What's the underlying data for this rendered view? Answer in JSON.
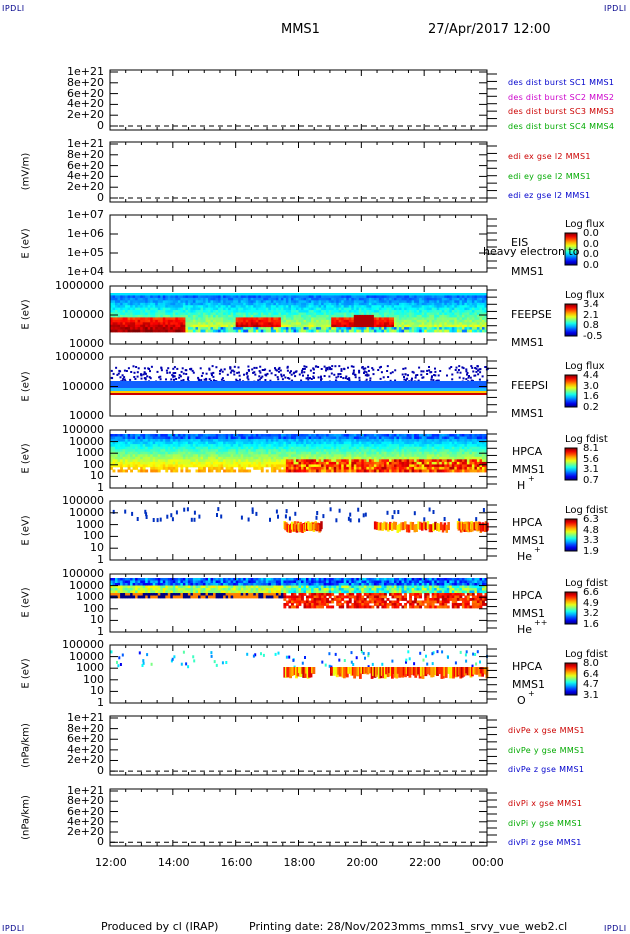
{
  "corner_labels": {
    "tl": "IPDLI",
    "tr": "IPDLI",
    "bl": "IPDLI",
    "br": "IPDLI"
  },
  "header": {
    "spacecraft": "MMS1",
    "datetime": "27/Apr/2017 12:00"
  },
  "footer": {
    "produced_by": "Produced by cl (IRAP)",
    "printing_date": "Printing date: 28/Nov/2023",
    "script": "mms_mms1_srvy_vue_web2.cl"
  },
  "colors": {
    "frame": "#000000",
    "mms1": "#0000cc",
    "mms2": "#cc00cc",
    "mms3": "#cc0000",
    "mms4": "#00aa00",
    "ex": "#cc0000",
    "ey": "#00aa00",
    "ez": "#0000cc"
  },
  "chart_data": [
    {
      "type": "line",
      "panel": "des dist burst",
      "ylabel": "",
      "yticks": [
        "1e+21",
        "8e+20",
        "6e+20",
        "4e+20",
        "2e+20",
        "0"
      ],
      "legend": [
        {
          "name": "des dist burst SC1 MMS1",
          "color": "#0000cc"
        },
        {
          "name": "des dist burst SC2 MMS2",
          "color": "#cc00cc"
        },
        {
          "name": "des dist burst SC3 MMS3",
          "color": "#cc0000"
        },
        {
          "name": "des dist burst SC4 MMS4",
          "color": "#00aa00"
        }
      ]
    },
    {
      "type": "line",
      "panel": "edi e gse",
      "ylabel": "(mV/m)",
      "yticks": [
        "1e+21",
        "8e+20",
        "6e+20",
        "4e+20",
        "2e+20",
        "0"
      ],
      "legend": [
        {
          "name": "edi ex gse l2 MMS1",
          "color": "#cc0000"
        },
        {
          "name": "edi ey gse l2 MMS1",
          "color": "#00aa00"
        },
        {
          "name": "edi ez gse l2 MMS1",
          "color": "#0000cc"
        }
      ]
    },
    {
      "type": "heatmap",
      "panel": "EIS",
      "ylabel": "E (eV)",
      "yticks": [
        "1e+07",
        "1e+06",
        "1e+05",
        "1e+04"
      ],
      "side_labels": [
        "EIS",
        "MMS1"
      ],
      "overlay": "heavy electron to",
      "cb_title": "Log flux",
      "cb_values": [
        "0.0",
        "0.0",
        "0.0",
        "0.0"
      ]
    },
    {
      "type": "heatmap",
      "panel": "FEEPSE",
      "ylabel": "E (eV)",
      "yticks": [
        "1000000",
        "100000",
        "10000"
      ],
      "side_labels": [
        "FEEPSE",
        "MMS1"
      ],
      "cb_title": "Log flux",
      "cb_values": [
        "3.4",
        "2.1",
        "0.8",
        "-0.5"
      ]
    },
    {
      "type": "heatmap",
      "panel": "FEEPSI",
      "ylabel": "E (eV)",
      "yticks": [
        "1000000",
        "100000",
        "10000"
      ],
      "side_labels": [
        "FEEPSI",
        "MMS1"
      ],
      "cb_title": "Log flux",
      "cb_values": [
        "4.4",
        "3.0",
        "1.6",
        "0.2"
      ]
    },
    {
      "type": "heatmap",
      "panel": "HPCA H+",
      "ylabel": "E (eV)",
      "yticks": [
        "100000",
        "10000",
        "1000",
        "100",
        "10",
        "1"
      ],
      "side_labels": [
        "HPCA",
        "MMS1",
        "H",
        "+"
      ],
      "cb_title": "Log fdist",
      "cb_values": [
        "8.1",
        "5.6",
        "3.1",
        "0.7"
      ]
    },
    {
      "type": "heatmap",
      "panel": "HPCA He+",
      "ylabel": "E (eV)",
      "yticks": [
        "100000",
        "10000",
        "1000",
        "100",
        "10",
        "1"
      ],
      "side_labels": [
        "HPCA",
        "MMS1",
        "He",
        "+"
      ],
      "cb_title": "Log fdist",
      "cb_values": [
        "6.3",
        "4.8",
        "3.3",
        "1.9"
      ]
    },
    {
      "type": "heatmap",
      "panel": "HPCA He++",
      "ylabel": "E (eV)",
      "yticks": [
        "100000",
        "10000",
        "1000",
        "100",
        "10",
        "1"
      ],
      "side_labels": [
        "HPCA",
        "MMS1",
        "He",
        "++"
      ],
      "cb_title": "Log fdist",
      "cb_values": [
        "6.6",
        "4.9",
        "3.2",
        "1.6"
      ]
    },
    {
      "type": "heatmap",
      "panel": "HPCA O+",
      "ylabel": "E (eV)",
      "yticks": [
        "100000",
        "10000",
        "1000",
        "100",
        "10",
        "1"
      ],
      "side_labels": [
        "HPCA",
        "MMS1",
        "O",
        "+"
      ],
      "cb_title": "Log fdist",
      "cb_values": [
        "8.0",
        "6.4",
        "4.7",
        "3.1"
      ]
    },
    {
      "type": "line",
      "panel": "divPe",
      "ylabel": "(nPa/km)",
      "yticks": [
        "1e+21",
        "8e+20",
        "6e+20",
        "4e+20",
        "2e+20",
        "0"
      ],
      "legend": [
        {
          "name": "divPe x gse MMS1",
          "color": "#cc0000"
        },
        {
          "name": "divPe y gse MMS1",
          "color": "#00aa00"
        },
        {
          "name": "divPe z gse MMS1",
          "color": "#0000cc"
        }
      ]
    },
    {
      "type": "line",
      "panel": "divPi",
      "ylabel": "(nPa/km)",
      "yticks": [
        "1e+21",
        "8e+20",
        "6e+20",
        "4e+20",
        "2e+20",
        "0"
      ],
      "legend": [
        {
          "name": "divPi x gse MMS1",
          "color": "#cc0000"
        },
        {
          "name": "divPi y gse MMS1",
          "color": "#00aa00"
        },
        {
          "name": "divPi z gse MMS1",
          "color": "#0000cc"
        }
      ]
    }
  ],
  "x_axis": {
    "ticks": [
      "12:00",
      "14:00",
      "16:00",
      "18:00",
      "20:00",
      "22:00",
      "00:00"
    ]
  }
}
